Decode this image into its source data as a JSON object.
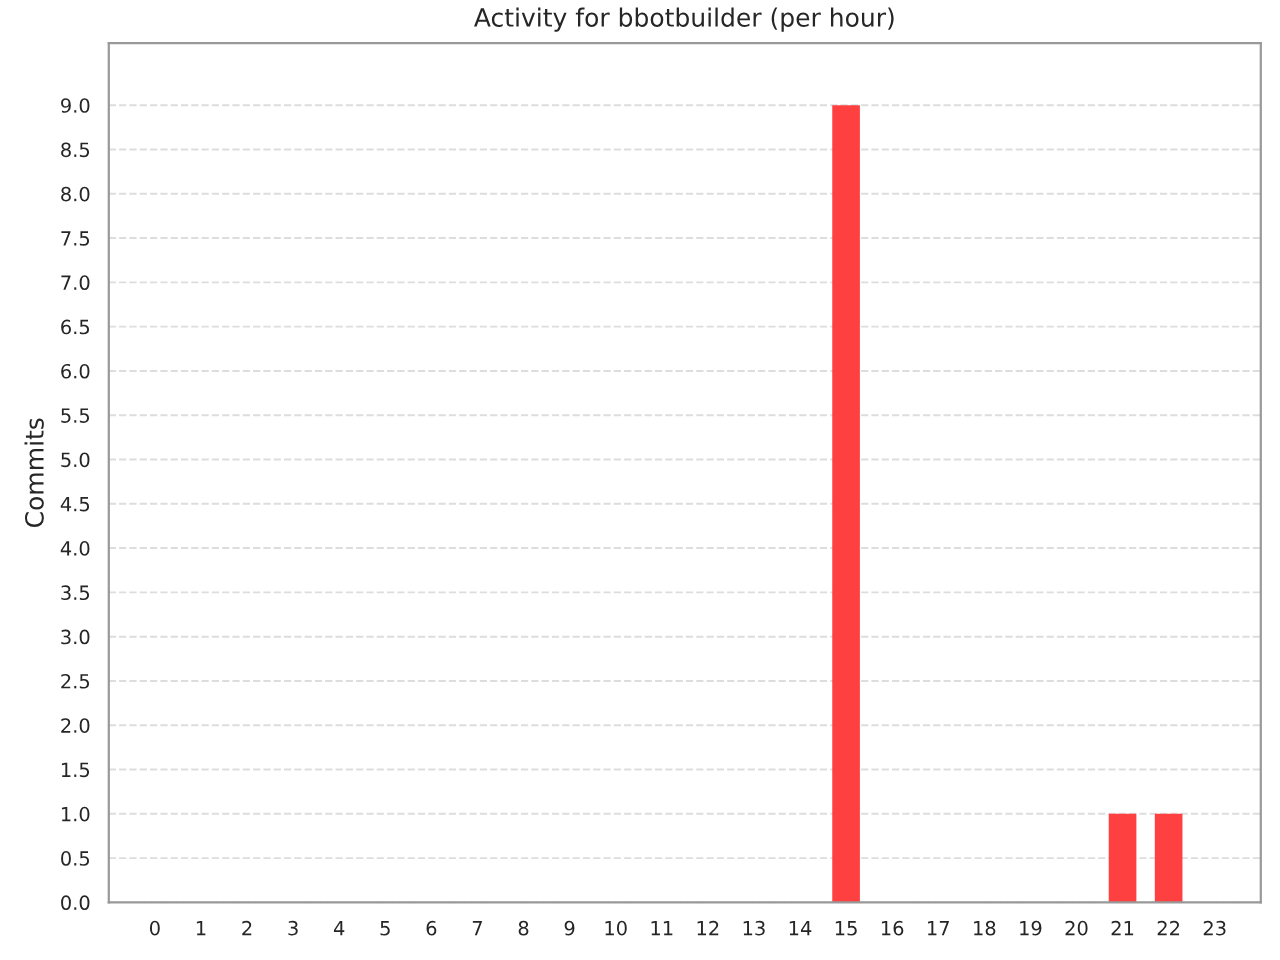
{
  "chart_data": {
    "type": "bar",
    "title": "Activity for bbotbuilder (per hour)",
    "ylabel": "Commits",
    "categories": [
      "0",
      "1",
      "2",
      "3",
      "4",
      "5",
      "6",
      "7",
      "8",
      "9",
      "10",
      "11",
      "12",
      "13",
      "14",
      "15",
      "16",
      "17",
      "18",
      "19",
      "20",
      "21",
      "22",
      "23"
    ],
    "values": [
      0,
      0,
      0,
      0,
      0,
      0,
      0,
      0,
      0,
      0,
      0,
      0,
      0,
      0,
      0,
      9,
      0,
      0,
      0,
      0,
      0,
      1,
      1,
      0
    ],
    "color": "#ff4040",
    "ylim": [
      0,
      9.7
    ],
    "yticks": [
      {
        "value": 0,
        "label": "0.0"
      },
      {
        "value": 0.5,
        "label": "0.5"
      },
      {
        "value": 1,
        "label": "1.0"
      },
      {
        "value": 1.5,
        "label": "1.5"
      },
      {
        "value": 2,
        "label": "2.0"
      },
      {
        "value": 2.5,
        "label": "2.5"
      },
      {
        "value": 3,
        "label": "3.0"
      },
      {
        "value": 3.5,
        "label": "3.5"
      },
      {
        "value": 4,
        "label": "4.0"
      },
      {
        "value": 4.5,
        "label": "4.5"
      },
      {
        "value": 5,
        "label": "5.0"
      },
      {
        "value": 5.5,
        "label": "5.5"
      },
      {
        "value": 6,
        "label": "6.0"
      },
      {
        "value": 6.5,
        "label": "6.5"
      },
      {
        "value": 7,
        "label": "7.0"
      },
      {
        "value": 7.5,
        "label": "7.5"
      },
      {
        "value": 8,
        "label": "8.0"
      },
      {
        "value": 8.5,
        "label": "8.5"
      },
      {
        "value": 9,
        "label": "9.0"
      }
    ],
    "grid": "y"
  }
}
